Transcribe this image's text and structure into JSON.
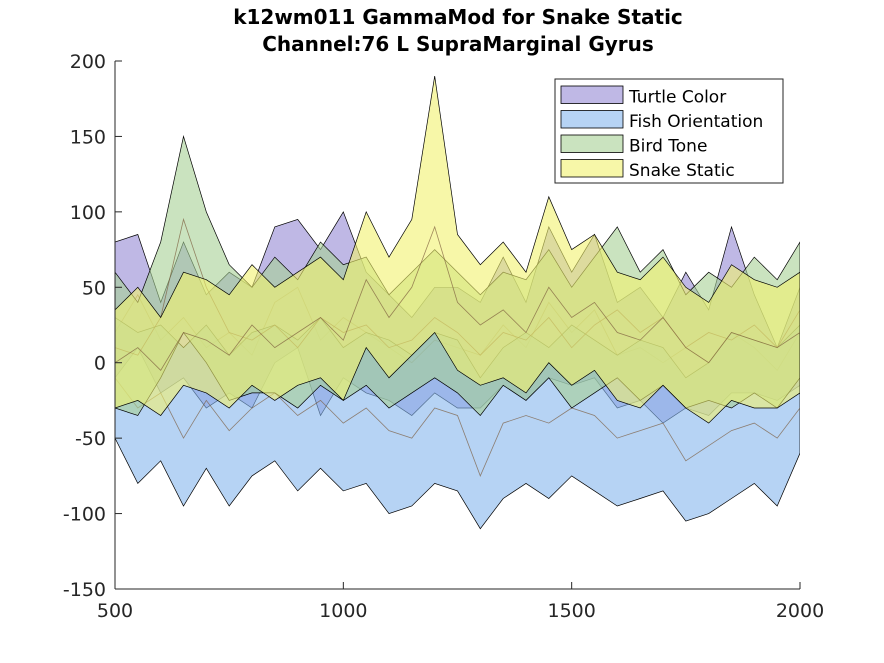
{
  "chart_data": {
    "type": "area",
    "title": "k12wm011 GammaMod for Snake Static",
    "subtitle": "Channel:76 L SupraMarginal Gyrus",
    "xlabel": "",
    "ylabel": "",
    "xlim": [
      500,
      2000
    ],
    "ylim": [
      -150,
      200
    ],
    "xticks": [
      500,
      1000,
      1500,
      2000
    ],
    "yticks": [
      200,
      150,
      100,
      50,
      0,
      -50,
      -100,
      -150
    ],
    "grid": false,
    "legend_position": "top-right",
    "x": [
      500,
      550,
      600,
      650,
      700,
      750,
      800,
      850,
      900,
      950,
      1000,
      1050,
      1100,
      1150,
      1200,
      1250,
      1300,
      1350,
      1400,
      1450,
      1500,
      1550,
      1600,
      1650,
      1700,
      1750,
      1800,
      1850,
      1900,
      1950,
      2000
    ],
    "series": [
      {
        "name": "Turtle Color",
        "color": "#9488d4",
        "mean": [
          20,
          45,
          15,
          30,
          10,
          20,
          5,
          40,
          50,
          15,
          30,
          20,
          10,
          0,
          15,
          10,
          5,
          25,
          10,
          40,
          20,
          35,
          5,
          10,
          0,
          10,
          0,
          20,
          10,
          -5,
          20
        ],
        "upper": [
          80,
          85,
          40,
          80,
          45,
          60,
          50,
          90,
          95,
          75,
          100,
          60,
          45,
          30,
          50,
          50,
          40,
          70,
          40,
          90,
          60,
          85,
          40,
          50,
          30,
          60,
          35,
          90,
          45,
          10,
          50
        ],
        "lower": [
          -10,
          10,
          -20,
          -10,
          -30,
          -20,
          -30,
          0,
          10,
          -35,
          -10,
          -20,
          -25,
          -35,
          -20,
          -30,
          -30,
          -15,
          -25,
          -10,
          -15,
          -10,
          -30,
          -25,
          -40,
          -30,
          -35,
          -20,
          -20,
          -25,
          -15
        ]
      },
      {
        "name": "Fish Orientation",
        "color": "#86b6ec",
        "mean": [
          -10,
          -30,
          -20,
          -50,
          -25,
          -45,
          -30,
          -20,
          -35,
          -25,
          -40,
          -30,
          -45,
          -50,
          -30,
          -35,
          -75,
          -40,
          -35,
          -40,
          -30,
          -35,
          -50,
          -45,
          -40,
          -65,
          -55,
          -45,
          -40,
          -50,
          -30
        ],
        "upper": [
          30,
          20,
          25,
          10,
          25,
          5,
          20,
          25,
          15,
          30,
          10,
          20,
          15,
          5,
          20,
          15,
          -10,
          10,
          20,
          10,
          25,
          15,
          5,
          15,
          10,
          -10,
          0,
          20,
          15,
          10,
          25
        ],
        "lower": [
          -50,
          -80,
          -65,
          -95,
          -70,
          -95,
          -75,
          -65,
          -85,
          -70,
          -85,
          -80,
          -100,
          -95,
          -80,
          -85,
          -110,
          -90,
          -80,
          -90,
          -75,
          -85,
          -95,
          -90,
          -85,
          -105,
          -100,
          -90,
          -80,
          -95,
          -60
        ]
      },
      {
        "name": "Bird Tone",
        "color": "#a6d195",
        "mean": [
          10,
          5,
          30,
          95,
          50,
          20,
          15,
          25,
          10,
          30,
          20,
          25,
          10,
          15,
          30,
          20,
          5,
          20,
          15,
          30,
          10,
          25,
          35,
          20,
          30,
          10,
          20,
          15,
          25,
          10,
          35
        ],
        "upper": [
          60,
          40,
          80,
          150,
          100,
          65,
          50,
          70,
          55,
          80,
          65,
          70,
          45,
          60,
          75,
          60,
          45,
          60,
          55,
          75,
          50,
          70,
          90,
          60,
          75,
          45,
          60,
          50,
          70,
          55,
          80
        ],
        "lower": [
          -30,
          -35,
          -10,
          20,
          0,
          -25,
          -20,
          -20,
          -30,
          -15,
          -25,
          -15,
          -30,
          -20,
          -10,
          -20,
          -35,
          -15,
          -25,
          -10,
          -30,
          -20,
          -10,
          -25,
          -15,
          -30,
          -25,
          -30,
          -20,
          -30,
          -10
        ]
      },
      {
        "name": "Snake Static",
        "color": "#f2f26e",
        "mean": [
          0,
          10,
          -5,
          20,
          15,
          5,
          25,
          10,
          20,
          30,
          15,
          55,
          30,
          50,
          90,
          40,
          25,
          35,
          20,
          50,
          30,
          40,
          20,
          15,
          30,
          10,
          0,
          20,
          15,
          10,
          20
        ],
        "upper": [
          35,
          50,
          30,
          60,
          55,
          45,
          65,
          50,
          60,
          70,
          55,
          100,
          70,
          95,
          190,
          85,
          65,
          80,
          60,
          110,
          75,
          85,
          60,
          55,
          70,
          50,
          40,
          65,
          55,
          50,
          60
        ],
        "lower": [
          -30,
          -25,
          -35,
          -15,
          -20,
          -30,
          -15,
          -25,
          -15,
          -10,
          -25,
          10,
          -10,
          5,
          20,
          -5,
          -15,
          -10,
          -20,
          0,
          -15,
          -5,
          -25,
          -30,
          -15,
          -30,
          -40,
          -25,
          -30,
          -30,
          -20
        ]
      }
    ]
  }
}
